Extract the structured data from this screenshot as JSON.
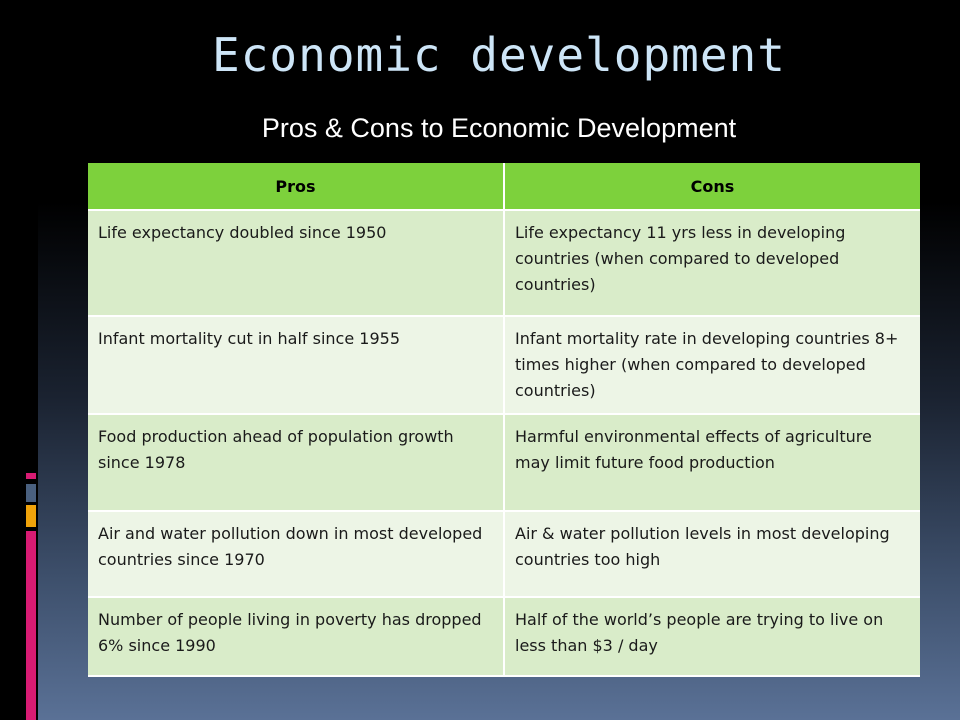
{
  "slide": {
    "title": "Economic development",
    "subtitle": "Pros & Cons to Economic Development"
  },
  "table": {
    "headers": [
      "Pros",
      "Cons"
    ],
    "rows": [
      [
        "Life expectancy doubled since 1950",
        "Life expectancy 11 yrs less in developing countries (when compared to developed countries)"
      ],
      [
        "Infant mortality cut in half since 1955",
        "Infant mortality rate in developing countries 8+ times higher (when compared to developed countries)"
      ],
      [
        "Food production ahead of population growth since 1978",
        "Harmful environmental effects of agriculture may limit future food production"
      ],
      [
        "Air and water pollution down in most developed countries since 1970",
        "Air & water pollution levels in most developing countries too high"
      ],
      [
        "Number of people living in poverty  has dropped 6% since 1990",
        "Half of the world’s people are trying to live on less than $3 / day"
      ]
    ]
  },
  "colors": {
    "header": "#7dd13c",
    "row_dark": "#d9ecc9",
    "row_light": "#edf5e6",
    "title": "#cde5f7",
    "accent_magenta": "#d81b73",
    "accent_orange": "#f0a30a"
  }
}
